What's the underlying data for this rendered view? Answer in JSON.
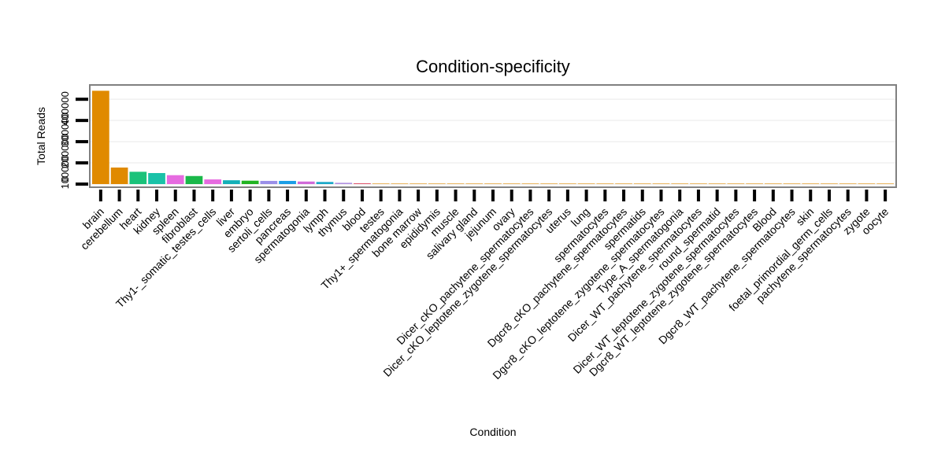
{
  "chart_data": {
    "type": "bar",
    "title": "Condition-specificity",
    "xlabel": "Condition",
    "ylabel": "Total Reads",
    "ylim": [
      0,
      460000
    ],
    "y_ticks": [
      0,
      100000,
      200000,
      300000,
      400000
    ],
    "y_tick_labels": [
      "0",
      "100000",
      "200000",
      "300000",
      "400000"
    ],
    "grid": true,
    "categories": [
      "brain",
      "cerebellum",
      "heart",
      "kidney",
      "spleen",
      "fibroblast",
      "Thy1-_somatic_testes_cells",
      "liver",
      "embryo",
      "sertoli_cells",
      "pancreas",
      "spermatogonia",
      "lymph",
      "thymus",
      "blood",
      "testes",
      "Thy1+_spermatogonia",
      "bone marrow",
      "epididymis",
      "muscle",
      "salivary gland",
      "jejunum",
      "ovary",
      "Dicer_cKO_pachytene_spermatocytes",
      "Dicer_cKO_leptotene_zygotene_spermatocytes",
      "uterus",
      "lung",
      "spermatocytes",
      "Dgcr8_cKO_pachytene_spermatocytes",
      "spermatids",
      "Dgcr8_cKO_leptotene_zygotene_spermatocytes",
      "Type_A_spermatogonia",
      "Dicer_WT_pachytene_spermatocytes",
      "round_spermatid",
      "Dicer_WT_leptotene_zygotene_spermatocytes",
      "Dgcr8_WT_leptotene_zygotene_spermatocytes",
      "Blood",
      "Dgcr8_WT_pachytene_spermatocytes",
      "skin",
      "foetal_primordial_germ_cells",
      "pachytene_spermatocytes",
      "zygote",
      "oocyte"
    ],
    "values": [
      440000,
      78000,
      58000,
      52000,
      42000,
      38000,
      22000,
      18000,
      16000,
      15000,
      15000,
      12000,
      10000,
      6000,
      4000,
      2000,
      1000,
      500,
      300,
      200,
      100,
      100,
      80,
      60,
      50,
      40,
      30,
      30,
      20,
      20,
      10,
      10,
      10,
      5,
      5,
      5,
      5,
      5,
      5,
      5,
      5,
      5,
      5
    ],
    "colors": [
      "#e08a00",
      "#e08a00",
      "#1ac27a",
      "#1ac2a8",
      "#e66be0",
      "#1ab84a",
      "#e66be0",
      "#14b0b8",
      "#22b422",
      "#9a8fe8",
      "#1a9ee6",
      "#d06ad8",
      "#1aa8c8",
      "#b090e0",
      "#e05a70",
      "#e08a00",
      "#e08a00",
      "#e08a00",
      "#e08a00",
      "#e08a00",
      "#e08a00",
      "#e08a00",
      "#e08a00",
      "#e08a00",
      "#e08a00",
      "#e08a00",
      "#e08a00",
      "#e08a00",
      "#e08a00",
      "#e08a00",
      "#e08a00",
      "#e08a00",
      "#e08a00",
      "#e08a00",
      "#e08a00",
      "#e08a00",
      "#e08a00",
      "#e08a00",
      "#e08a00",
      "#e08a00",
      "#e08a00",
      "#e08a00",
      "#e08a00"
    ]
  }
}
